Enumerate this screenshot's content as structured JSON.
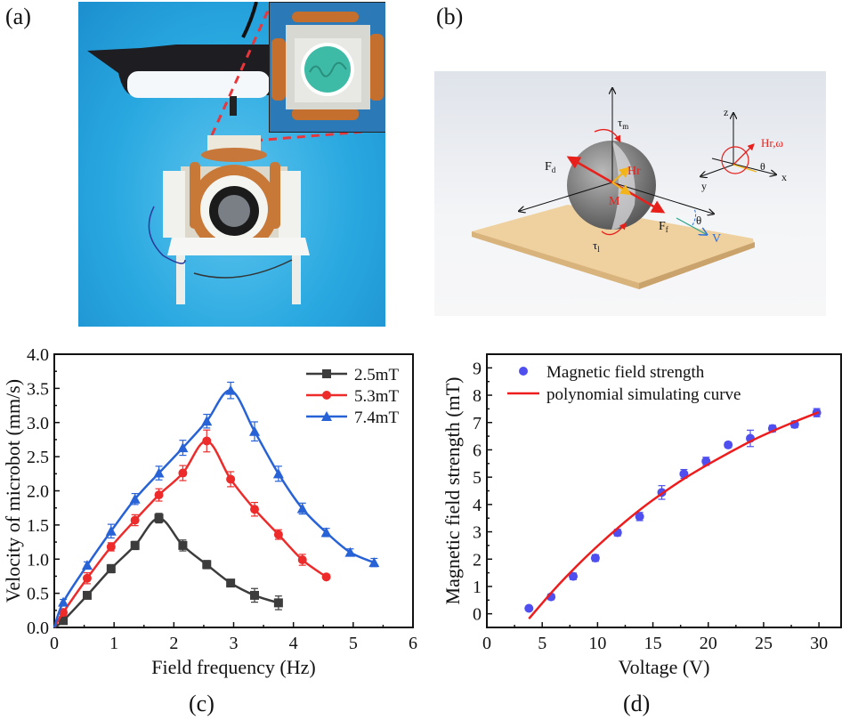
{
  "figure": {
    "panels": {
      "a": {
        "label": "(a)"
      },
      "b": {
        "label": "(b)"
      },
      "c": {
        "label": "(c)"
      },
      "d": {
        "label": "(d)"
      }
    }
  },
  "diagram_b": {
    "labels": {
      "tau_m": "τ",
      "tau_m_sub": "m",
      "F_d": "F",
      "F_d_sub": "d",
      "Hr": "Hr",
      "M": "M",
      "F_f": "F",
      "F_f_sub": "f",
      "theta": "θ",
      "V": "V",
      "tau_l": "τ",
      "tau_l_sub": "l",
      "axis_z": "z",
      "axis_y": "y",
      "axis_x": "x",
      "Hr_omega": "Hr,ω",
      "theta_inset": "θ"
    },
    "colors": {
      "red": "#e8201c",
      "blue": "#2d6fd6",
      "yellow": "#f2b418",
      "plate": "#f1d3a2"
    }
  },
  "chart_data": [
    {
      "id": "c",
      "type": "line",
      "title": "",
      "xlabel": "Field frequency (Hz)",
      "ylabel": "Velocity of microbot (mm/s)",
      "xlim": [
        0,
        6
      ],
      "ylim": [
        0,
        4.0
      ],
      "xticks": [
        "0",
        "1",
        "2",
        "3",
        "4",
        "5",
        "6"
      ],
      "yticks": [
        "0.0",
        "0.5",
        "1.0",
        "1.5",
        "2.0",
        "2.5",
        "3.0",
        "3.5",
        "4.0"
      ],
      "grid": false,
      "legend_position": "top-right",
      "series": [
        {
          "name": "2.5mT",
          "color": "#3c3c3c",
          "marker": "square",
          "x": [
            0,
            0.15,
            0.55,
            0.95,
            1.35,
            1.75,
            2.15,
            2.55,
            2.95,
            3.35,
            3.75
          ],
          "y": [
            0,
            0.1,
            0.47,
            0.86,
            1.2,
            1.6,
            1.2,
            0.92,
            0.65,
            0.47,
            0.36
          ],
          "err": [
            0,
            0.03,
            0.04,
            0.06,
            0.06,
            0.07,
            0.08,
            0.06,
            0.04,
            0.1,
            0.1
          ]
        },
        {
          "name": "5.3mT",
          "color": "#ee2b2b",
          "marker": "circle",
          "x": [
            0,
            0.15,
            0.55,
            0.95,
            1.35,
            1.75,
            2.15,
            2.55,
            2.95,
            3.35,
            3.75,
            4.15,
            4.55
          ],
          "y": [
            0,
            0.22,
            0.72,
            1.18,
            1.57,
            1.94,
            2.26,
            2.73,
            2.17,
            1.73,
            1.36,
            0.99,
            0.74
          ],
          "err": [
            0,
            0.05,
            0.08,
            0.06,
            0.08,
            0.09,
            0.11,
            0.16,
            0.11,
            0.1,
            0.07,
            0.08,
            0.03
          ]
        },
        {
          "name": "7.4mT",
          "color": "#2762d6",
          "marker": "triangle",
          "x": [
            0,
            0.15,
            0.55,
            0.95,
            1.35,
            1.75,
            2.15,
            2.55,
            2.95,
            3.35,
            3.75,
            4.15,
            4.55,
            4.95,
            5.35
          ],
          "y": [
            0,
            0.37,
            0.91,
            1.41,
            1.88,
            2.26,
            2.63,
            3.02,
            3.47,
            2.87,
            2.25,
            1.74,
            1.39,
            1.1,
            0.95
          ],
          "err": [
            0,
            0.04,
            0.05,
            0.1,
            0.08,
            0.1,
            0.11,
            0.1,
            0.12,
            0.14,
            0.11,
            0.08,
            0.06,
            0.05,
            0.06
          ]
        }
      ]
    },
    {
      "id": "d",
      "type": "scatter",
      "title": "",
      "xlabel": "Voltage (V)",
      "ylabel": "Magnetic field strength (mT)",
      "xlim": [
        0,
        32
      ],
      "ylim": [
        -0.5,
        9.5
      ],
      "xticks": [
        "0",
        "5",
        "10",
        "15",
        "20",
        "25",
        "30"
      ],
      "yticks": [
        "0",
        "1",
        "2",
        "3",
        "4",
        "5",
        "6",
        "7",
        "8",
        "9"
      ],
      "grid": false,
      "legend_position": "top-left",
      "series": [
        {
          "name": "Magnetic field strength",
          "color": "#4f4ff0",
          "marker": "circle",
          "x": [
            3.8,
            5.8,
            7.8,
            9.8,
            11.8,
            13.8,
            15.8,
            17.8,
            19.8,
            21.8,
            23.8,
            25.8,
            27.8,
            29.8
          ],
          "y": [
            0.2,
            0.62,
            1.37,
            2.04,
            2.97,
            3.56,
            4.44,
            5.12,
            5.58,
            6.18,
            6.42,
            6.78,
            6.93,
            7.36
          ],
          "err": [
            0.06,
            0.1,
            0.12,
            0.12,
            0.12,
            0.15,
            0.25,
            0.16,
            0.15,
            0.1,
            0.3,
            0.12,
            0.12,
            0.15
          ]
        },
        {
          "name": "polynomial simulating curve",
          "color": "#ee1c1c",
          "type": "line",
          "x": [
            3.8,
            6,
            8,
            10,
            12,
            14,
            16,
            18,
            20,
            22,
            24,
            26,
            28,
            30
          ],
          "y": [
            -0.18,
            0.85,
            1.7,
            2.48,
            3.2,
            3.86,
            4.45,
            4.99,
            5.47,
            5.92,
            6.35,
            6.72,
            7.06,
            7.38
          ]
        }
      ]
    }
  ]
}
